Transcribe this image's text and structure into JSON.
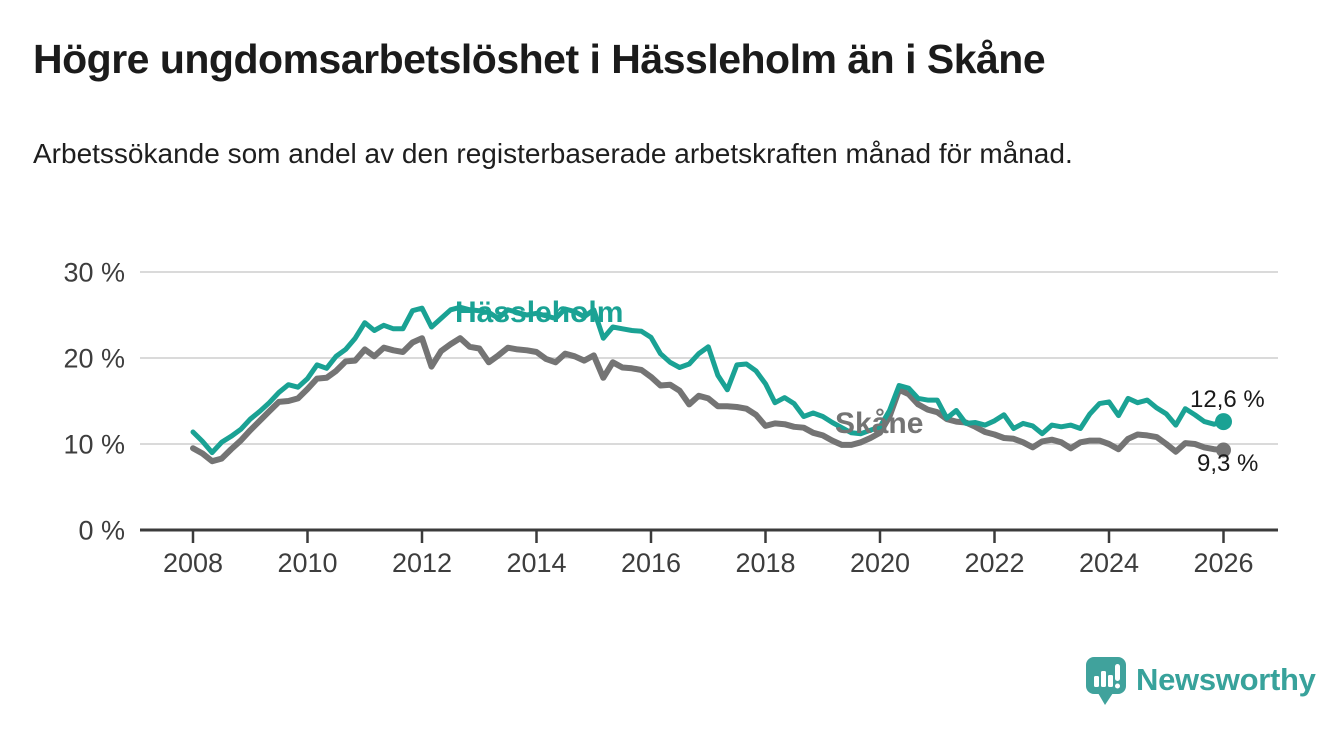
{
  "header": {
    "title": "Högre ungdomsarbetslöshet i Hässleholm än i Skåne",
    "subtitle": "Arbetssökande som andel av den registerbaserade arbetskraften månad för månad."
  },
  "chart_data": {
    "type": "line",
    "title": "Högre ungdomsarbetslöshet i Hässleholm än i Skåne",
    "xlabel": "",
    "ylabel": "Arbetssökande som andel av den registerbaserade arbetskraften",
    "x_unit": "decimal year, monthly cadence (one value every 2 months)",
    "x_start": 2008.0,
    "x_step": 0.1666667,
    "xlim": [
      2007.1,
      2027.0
    ],
    "ylim": [
      0,
      30
    ],
    "grid": "horizontal",
    "legend_position": "inline-labels",
    "y_tick_values": [
      30,
      20,
      10,
      0
    ],
    "y_tick_labels": [
      "30 %",
      "20 %",
      "10 %",
      "0 %"
    ],
    "x_tick_values": [
      2008,
      2010,
      2012,
      2014,
      2016,
      2018,
      2020,
      2022,
      2024,
      2026
    ],
    "x_tick_labels": [
      "2008",
      "2010",
      "2012",
      "2014",
      "2016",
      "2018",
      "2020",
      "2022",
      "2024",
      "2026"
    ],
    "series": [
      {
        "name": "Hässleholm",
        "key": "hassleholm",
        "color": "#1aa294",
        "end_label": "12,6 %",
        "end_value": 12.6,
        "values": [
          11.4,
          10.3,
          9.0,
          10.2,
          10.9,
          11.7,
          12.9,
          13.8,
          14.8,
          16.0,
          16.9,
          16.6,
          17.6,
          19.2,
          18.8,
          20.2,
          21.0,
          22.3,
          24.1,
          23.2,
          23.8,
          23.4,
          23.4,
          25.5,
          25.8,
          23.6,
          24.6,
          25.6,
          25.9,
          25.6,
          25.5,
          25.3,
          24.6,
          25.6,
          25.3,
          25.0,
          25.2,
          24.9,
          24.6,
          25.7,
          25.4,
          24.8,
          25.6,
          22.3,
          23.6,
          23.4,
          23.2,
          23.1,
          22.4,
          20.5,
          19.5,
          18.9,
          19.3,
          20.5,
          21.3,
          18.0,
          16.3,
          19.2,
          19.3,
          18.5,
          17.0,
          14.8,
          15.4,
          14.7,
          13.2,
          13.6,
          13.2,
          12.5,
          11.9,
          11.3,
          11.2,
          11.6,
          12.0,
          13.9,
          16.8,
          16.5,
          15.3,
          15.1,
          15.1,
          13.0,
          13.9,
          12.4,
          12.5,
          12.2,
          12.7,
          13.4,
          11.8,
          12.4,
          12.1,
          11.2,
          12.2,
          12.0,
          12.2,
          11.8,
          13.5,
          14.7,
          14.9,
          13.3,
          15.3,
          14.8,
          15.1,
          14.2,
          13.5,
          12.2,
          14.1,
          13.4,
          12.6,
          12.3,
          12.6
        ]
      },
      {
        "name": "Skåne",
        "key": "skane",
        "color": "#747474",
        "end_label": "9,3 %",
        "end_value": 9.3,
        "values": [
          9.5,
          8.9,
          8.0,
          8.3,
          9.4,
          10.4,
          11.6,
          12.7,
          13.8,
          14.9,
          15.0,
          15.3,
          16.4,
          17.6,
          17.7,
          18.5,
          19.6,
          19.7,
          21.0,
          20.2,
          21.2,
          20.9,
          20.7,
          21.8,
          22.3,
          19.0,
          20.8,
          21.6,
          22.3,
          21.3,
          21.1,
          19.5,
          20.3,
          21.2,
          21.0,
          20.9,
          20.7,
          19.9,
          19.5,
          20.5,
          20.2,
          19.7,
          20.3,
          17.7,
          19.5,
          18.9,
          18.8,
          18.6,
          17.8,
          16.8,
          16.9,
          16.2,
          14.6,
          15.6,
          15.3,
          14.4,
          14.4,
          14.3,
          14.1,
          13.4,
          12.1,
          12.4,
          12.3,
          12.0,
          11.9,
          11.3,
          11.0,
          10.4,
          9.9,
          9.9,
          10.2,
          10.7,
          11.3,
          13.2,
          16.3,
          15.8,
          14.6,
          14.0,
          13.7,
          12.9,
          12.6,
          12.5,
          12.0,
          11.4,
          11.1,
          10.7,
          10.6,
          10.2,
          9.6,
          10.3,
          10.5,
          10.2,
          9.5,
          10.2,
          10.4,
          10.4,
          10.0,
          9.4,
          10.6,
          11.1,
          11.0,
          10.8,
          10.0,
          9.1,
          10.1,
          10.0,
          9.6,
          9.4,
          9.3
        ]
      }
    ],
    "colors": {
      "hassleholm_line": "#1aa294",
      "skane_line": "#747474",
      "gridline": "#dadada",
      "axis": "#3b3b3b",
      "text": "#1b1b1b"
    }
  },
  "footer": {
    "brand": "Newsworthy",
    "logo_color": "#40a29c"
  }
}
